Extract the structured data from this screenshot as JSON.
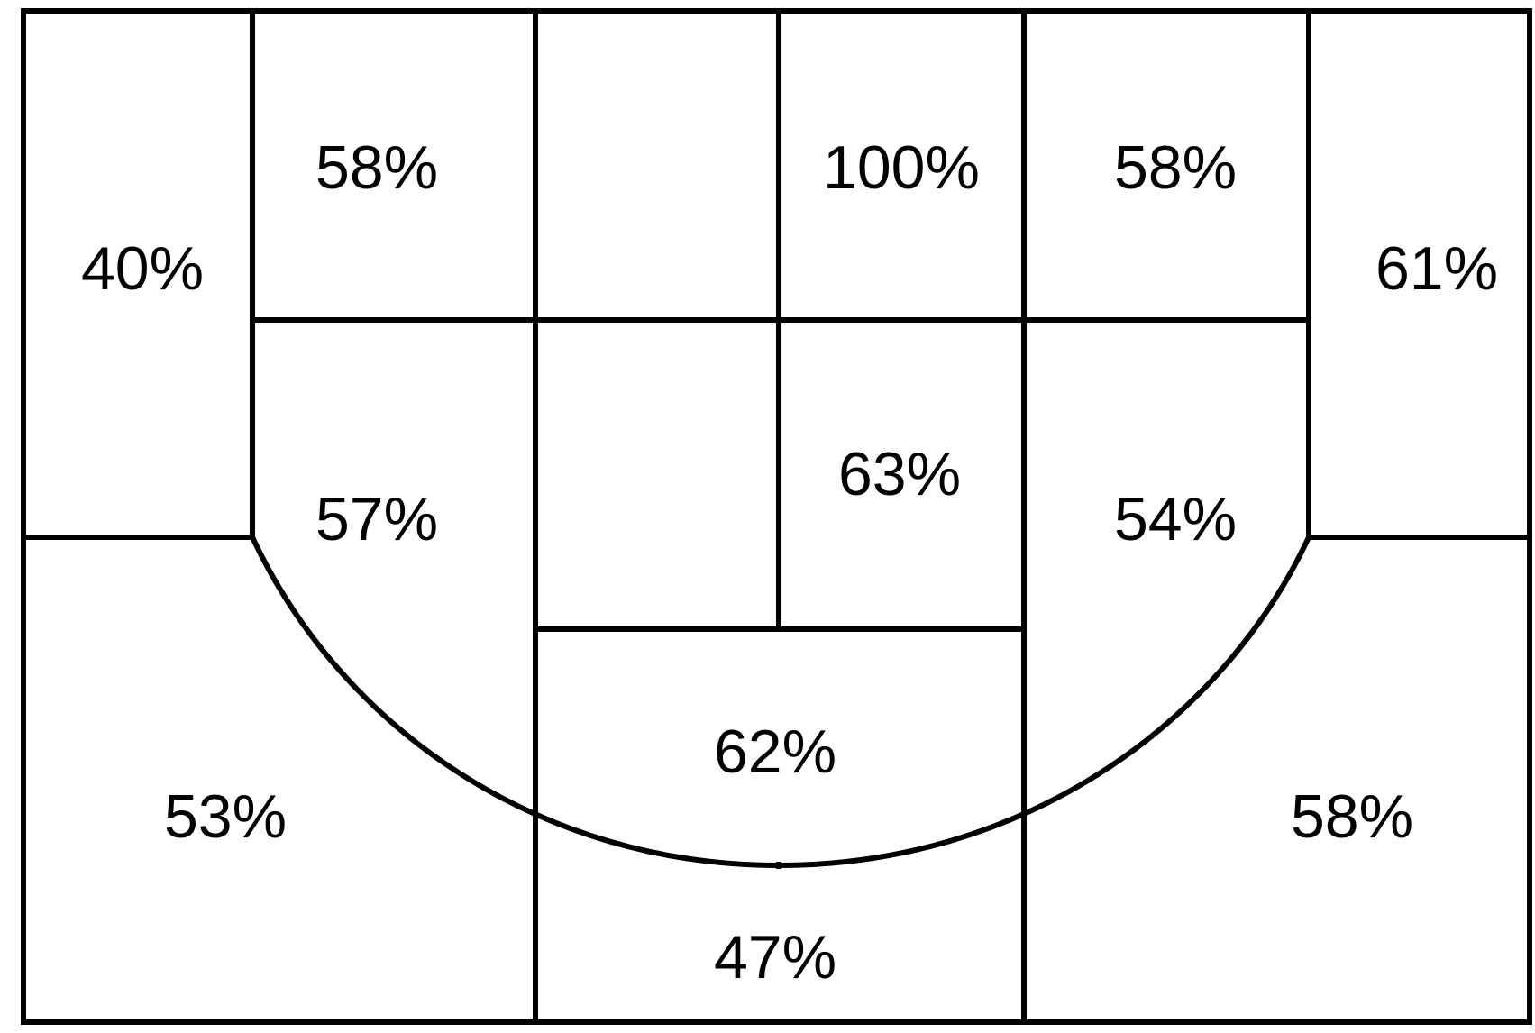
{
  "zones": [
    {
      "id": "left-corner-upper",
      "label": "40%"
    },
    {
      "id": "left-wing-upper",
      "label": "58%"
    },
    {
      "id": "center-top-right",
      "label": "100%"
    },
    {
      "id": "right-wing-upper",
      "label": "58%"
    },
    {
      "id": "right-corner-upper",
      "label": "61%"
    },
    {
      "id": "left-elbow",
      "label": "57%"
    },
    {
      "id": "center-middle-right",
      "label": "63%"
    },
    {
      "id": "right-elbow",
      "label": "54%"
    },
    {
      "id": "top-of-key",
      "label": "62%"
    },
    {
      "id": "left-deep",
      "label": "53%"
    },
    {
      "id": "right-deep",
      "label": "58%"
    },
    {
      "id": "center-deep",
      "label": "47%"
    }
  ],
  "colors": {
    "line": "#000000",
    "background": "#ffffff",
    "text": "#000000"
  }
}
